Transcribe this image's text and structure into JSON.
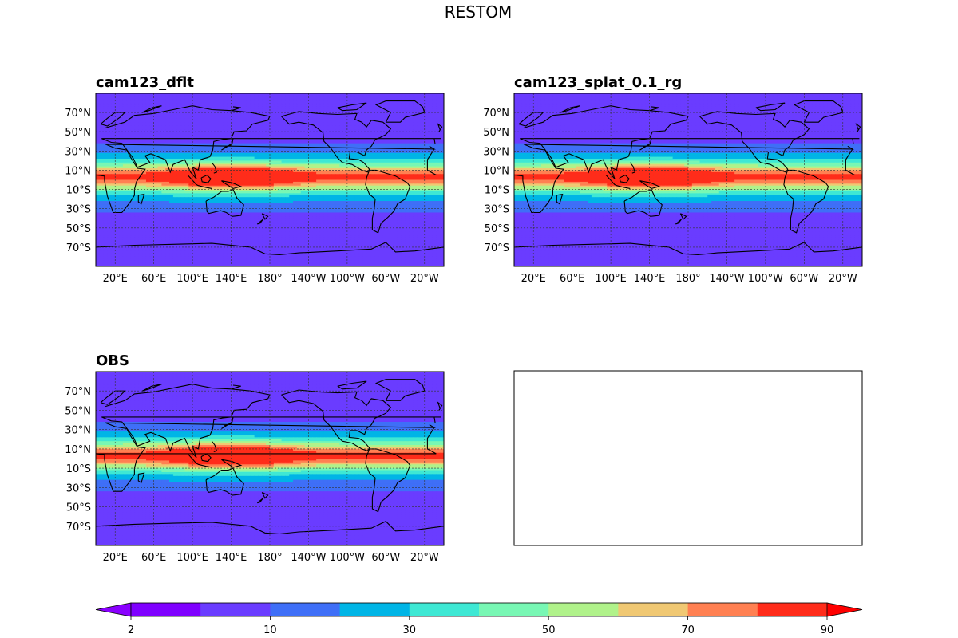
{
  "figure": {
    "title": "RESTOM"
  },
  "chart_data": {
    "type": "heatmap",
    "title": "RESTOM",
    "variable": "RESTOM",
    "panels": [
      {
        "title": "cam123_dflt",
        "has_data": true,
        "xtick_labels": [
          "20°E",
          "60°E",
          "100°E",
          "140°E",
          "180°",
          "140°W",
          "100°W",
          "60°W",
          "20°W"
        ],
        "ytick_labels": [
          "70°N",
          "50°N",
          "30°N",
          "10°N",
          "10°S",
          "30°S",
          "50°S",
          "70°S"
        ],
        "lon_ticks_deg": [
          20,
          60,
          100,
          140,
          180,
          220,
          260,
          300,
          340
        ],
        "lat_ticks_deg": [
          70,
          50,
          30,
          10,
          -10,
          -30,
          -50,
          -70
        ],
        "lon_range": [
          0,
          360
        ],
        "lat_range": [
          -90,
          90
        ],
        "peak_band": "10°N–10°S, 60°E–180°",
        "peak_value": 90
      },
      {
        "title": "cam123_splat_0.1_rg",
        "has_data": true,
        "xtick_labels": [
          "20°E",
          "60°E",
          "100°E",
          "140°E",
          "180°",
          "140°W",
          "100°W",
          "60°W",
          "20°W"
        ],
        "ytick_labels": [
          "70°N",
          "50°N",
          "30°N",
          "10°N",
          "10°S",
          "30°S",
          "50°S",
          "70°S"
        ],
        "lon_ticks_deg": [
          20,
          60,
          100,
          140,
          180,
          220,
          260,
          300,
          340
        ],
        "lat_ticks_deg": [
          70,
          50,
          30,
          10,
          -10,
          -30,
          -50,
          -70
        ],
        "lon_range": [
          0,
          360
        ],
        "lat_range": [
          -90,
          90
        ],
        "peak_band": "10°N–10°S, 60°E–180°",
        "peak_value": 90
      },
      {
        "title": "OBS",
        "has_data": true,
        "xtick_labels": [
          "20°E",
          "60°E",
          "100°E",
          "140°E",
          "180°",
          "140°W",
          "100°W",
          "60°W",
          "20°W"
        ],
        "ytick_labels": [
          "70°N",
          "50°N",
          "30°N",
          "10°N",
          "10°S",
          "30°S",
          "50°S",
          "70°S"
        ],
        "lon_ticks_deg": [
          20,
          60,
          100,
          140,
          180,
          220,
          260,
          300,
          340
        ],
        "lat_ticks_deg": [
          70,
          50,
          30,
          10,
          -10,
          -30,
          -50,
          -70
        ],
        "lon_range": [
          0,
          360
        ],
        "lat_range": [
          -90,
          90
        ],
        "peak_band": "10°N–10°S, 60°E–180°",
        "peak_value": 90
      },
      {
        "title": "",
        "has_data": false
      }
    ],
    "colorbar": {
      "levels": [
        2,
        5,
        10,
        20,
        30,
        40,
        50,
        60,
        70,
        80,
        90
      ],
      "tick_values": [
        2,
        10,
        30,
        50,
        70,
        90
      ],
      "tick_labels": [
        "2",
        "10",
        "30",
        "50",
        "70",
        "90"
      ],
      "extend": "both",
      "colors": [
        "#7f00ff",
        "#6a3cff",
        "#3f6ff7",
        "#00b5e6",
        "#3ee8d4",
        "#78f7b4",
        "#b0f28a",
        "#f0c873",
        "#ff8052",
        "#ff2c1a"
      ],
      "under_color": "#8a00ff",
      "over_color": "#ff0000"
    },
    "grid": true
  },
  "colors": {
    "frame": "#000000",
    "coast": "#000000"
  }
}
